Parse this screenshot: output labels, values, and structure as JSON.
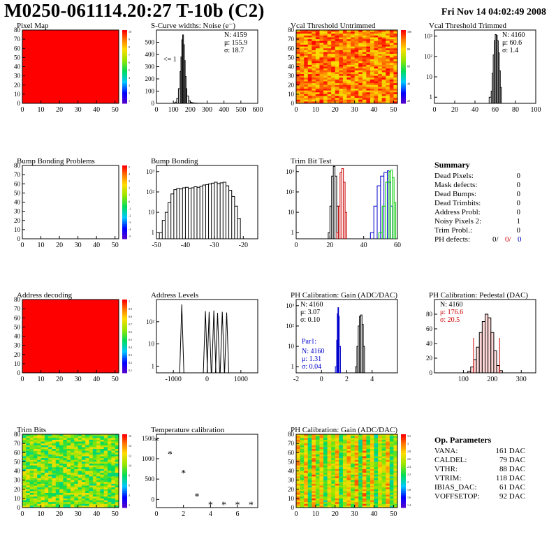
{
  "header": {
    "title": "M0250-061114.20:27 T-10b (C2)",
    "date": "Fri Nov 14 04:02:49 2008"
  },
  "summary": {
    "title": "Summary",
    "rows": [
      {
        "label": "Dead Pixels:",
        "value": "0"
      },
      {
        "label": "Mask defects:",
        "value": "0"
      },
      {
        "label": "Dead Bumps:",
        "value": "0"
      },
      {
        "label": "Dead Trimbits:",
        "value": "0"
      },
      {
        "label": "Address Probl:",
        "value": "0"
      },
      {
        "label": "Noisy Pixels 2:",
        "value": "1"
      },
      {
        "label": "Trim Probl.:",
        "value": "0"
      }
    ],
    "ph_label": "PH defects:",
    "ph_values": [
      "0/",
      "0/",
      "0"
    ],
    "ph_colors": [
      "#000000",
      "#cc0000",
      "#0000cc"
    ]
  },
  "op_params": {
    "title": "Op. Parameters",
    "rows": [
      {
        "label": "VANA:",
        "value": "161 DAC"
      },
      {
        "label": "CALDEL:",
        "value": "79 DAC"
      },
      {
        "label": "VTHR:",
        "value": "88 DAC"
      },
      {
        "label": "VTRIM:",
        "value": "118 DAC"
      },
      {
        "label": "IBIAS_DAC:",
        "value": "61 DAC"
      },
      {
        "label": "VOFFSETOP:",
        "value": "92 DAC"
      }
    ]
  },
  "chart_data": [
    {
      "id": "pixel-map",
      "type": "heatmap",
      "title": "Pixel Map",
      "xlim": [
        0,
        52
      ],
      "ylim": [
        0,
        80
      ],
      "xticks": [
        0,
        10,
        20,
        30,
        40,
        50
      ],
      "yticks": [
        0,
        10,
        20,
        30,
        40,
        50,
        60,
        70,
        80
      ],
      "palette_ticks": [
        "10",
        "9",
        "8",
        "7",
        "6",
        "5",
        "4",
        "3",
        "2",
        "1"
      ],
      "fill": "uniform-red"
    },
    {
      "id": "scurve-noise",
      "type": "line",
      "title": "S-Curve widths: Noise (e⁻)",
      "xlim": [
        0,
        600
      ],
      "ylim": [
        0,
        600
      ],
      "xticks": [
        0,
        100,
        200,
        300,
        400,
        500,
        600
      ],
      "yticks": [
        0,
        100,
        200,
        300,
        400,
        500
      ],
      "x": [
        80,
        100,
        110,
        120,
        130,
        140,
        145,
        150,
        155,
        160,
        165,
        170,
        175,
        180,
        190,
        200,
        210,
        220,
        240,
        260,
        280
      ],
      "y": [
        0,
        2,
        10,
        40,
        120,
        260,
        380,
        520,
        560,
        480,
        350,
        220,
        120,
        60,
        20,
        8,
        4,
        2,
        1,
        1,
        0
      ],
      "stats": [
        "N: 4159",
        "μ: 155.9",
        "σ: 18.7"
      ],
      "annotation": "<= 1"
    },
    {
      "id": "vcal-untrimmed",
      "type": "heatmap",
      "title": "Vcal Threshold Untrimmed",
      "xlim": [
        0,
        52
      ],
      "ylim": [
        0,
        80
      ],
      "xticks": [
        0,
        10,
        20,
        30,
        40,
        50
      ],
      "yticks": [
        0,
        10,
        20,
        30,
        40,
        50,
        60,
        70,
        80
      ],
      "palette_ticks": [
        "100",
        "80",
        "60",
        "40",
        "20"
      ],
      "fill": "noisy-orange"
    },
    {
      "id": "vcal-trimmed",
      "type": "line",
      "title": "Vcal Threshold Trimmed",
      "log_y": true,
      "xlim": [
        0,
        100
      ],
      "ylim": [
        0.5,
        2000
      ],
      "xticks": [
        0,
        20,
        40,
        60,
        80,
        100
      ],
      "yticks": [
        "1",
        "10",
        "10²",
        "10³"
      ],
      "x": [
        54,
        56,
        57,
        58,
        59,
        60,
        61,
        62,
        63,
        64,
        65,
        66
      ],
      "y": [
        1,
        2,
        15,
        120,
        600,
        1200,
        1100,
        600,
        150,
        20,
        3,
        1
      ],
      "stats": [
        "N: 4160",
        "μ: 60.6",
        "σ: 1.4"
      ]
    },
    {
      "id": "bump-problems",
      "type": "heatmap",
      "title": "Bump Bonding Problems",
      "xlim": [
        0,
        52
      ],
      "ylim": [
        0,
        80
      ],
      "xticks": [
        0,
        10,
        20,
        30,
        40,
        50
      ],
      "yticks": [
        0,
        10,
        20,
        30,
        40,
        50,
        60,
        70,
        80
      ],
      "palette_ticks": [
        "5",
        "4",
        "3",
        "2",
        "1",
        "0",
        "-1",
        "-2",
        "-3",
        "-4",
        "-5"
      ],
      "fill": "empty"
    },
    {
      "id": "bump-bonding",
      "type": "line",
      "title": "Bump Bonding",
      "log_y": true,
      "xlim": [
        -50,
        -15
      ],
      "ylim": [
        0.5,
        2000
      ],
      "xticks": [
        -50,
        -40,
        -30,
        -20
      ],
      "yticks": [
        "1",
        "10",
        "10²",
        "10³"
      ],
      "x": [
        -49,
        -48,
        -47,
        -46,
        -45,
        -44,
        -43,
        -42,
        -41,
        -40,
        -39,
        -38,
        -37,
        -36,
        -35,
        -34,
        -33,
        -32,
        -31,
        -30,
        -29,
        -28,
        -27,
        -26,
        -25,
        -24,
        -23,
        -22,
        -21
      ],
      "y": [
        1,
        4,
        10,
        30,
        80,
        130,
        150,
        140,
        160,
        170,
        150,
        160,
        180,
        170,
        190,
        220,
        230,
        250,
        270,
        300,
        260,
        280,
        300,
        200,
        120,
        60,
        20,
        5,
        1
      ]
    },
    {
      "id": "trim-bit-test",
      "type": "line",
      "title": "Trim Bit Test",
      "log_y": true,
      "xlim": [
        0,
        60
      ],
      "ylim": [
        0.5,
        2000
      ],
      "xticks": [
        0,
        20,
        40,
        60
      ],
      "yticks": [
        "1",
        "10",
        "10²",
        "10³"
      ],
      "series": [
        {
          "color": "#000000",
          "x": [
            19,
            20,
            21,
            22,
            23,
            24,
            25
          ],
          "y": [
            1,
            20,
            600,
            1800,
            600,
            20,
            1
          ]
        },
        {
          "color": "#cc0000",
          "x": [
            24,
            25,
            26,
            27,
            28,
            29,
            30
          ],
          "y": [
            1,
            20,
            900,
            1400,
            300,
            10,
            1
          ]
        },
        {
          "color": "#0000cc",
          "x": [
            44,
            46,
            48,
            50,
            52,
            54,
            55,
            56,
            57
          ],
          "y": [
            1,
            20,
            200,
            600,
            900,
            1100,
            300,
            20,
            1
          ]
        },
        {
          "color": "#00cc00",
          "x": [
            49,
            51,
            53,
            55,
            56,
            57,
            58,
            59
          ],
          "y": [
            1,
            20,
            300,
            1000,
            1200,
            500,
            30,
            1
          ]
        }
      ]
    },
    {
      "id": "address-decoding",
      "type": "heatmap",
      "title": "Address decoding",
      "xlim": [
        0,
        52
      ],
      "ylim": [
        0,
        80
      ],
      "xticks": [
        0,
        10,
        20,
        30,
        40,
        50
      ],
      "yticks": [
        0,
        10,
        20,
        30,
        40,
        50,
        60,
        70,
        80
      ],
      "palette_ticks": [
        "1",
        "0.9",
        "0.8",
        "0.7",
        "0.6",
        "0.5",
        "0.4",
        "0.3",
        "0.2",
        "0.1"
      ],
      "fill": "uniform-red"
    },
    {
      "id": "address-levels",
      "type": "line",
      "title": "Address Levels",
      "log_y": true,
      "xlim": [
        -1500,
        1500
      ],
      "ylim": [
        0.5,
        1000
      ],
      "xticks": [
        -1000,
        0,
        1000
      ],
      "yticks": [
        "1",
        "10",
        "10²"
      ],
      "peaks": [
        {
          "x": -750,
          "y": 600
        },
        {
          "x": -50,
          "y": 300
        },
        {
          "x": 60,
          "y": 280
        },
        {
          "x": 200,
          "y": 320
        },
        {
          "x": 310,
          "y": 250
        },
        {
          "x": 450,
          "y": 280
        },
        {
          "x": 580,
          "y": 260
        }
      ]
    },
    {
      "id": "ph-gain",
      "type": "line",
      "title": "PH Calibration: Gain (ADC/DAC)",
      "log_y": true,
      "xlim": [
        -2,
        6
      ],
      "ylim": [
        0.5,
        2000
      ],
      "xticks": [
        -2,
        0,
        2,
        4
      ],
      "yticks": [
        "1",
        "10",
        "10²",
        "10³"
      ],
      "series": [
        {
          "color": "#0000cc",
          "x": [
            1.1,
            1.2,
            1.25,
            1.3,
            1.35,
            1.4,
            1.5
          ],
          "y": [
            1,
            20,
            400,
            800,
            300,
            10,
            1
          ]
        },
        {
          "color": "#000000",
          "x": [
            2.7,
            2.8,
            2.9,
            3.0,
            3.1,
            3.2,
            3.3,
            3.4
          ],
          "y": [
            1,
            10,
            100,
            300,
            350,
            120,
            10,
            1
          ]
        }
      ],
      "stats": [
        "N: 4160",
        "μ: 3.07",
        "σ: 0.10"
      ],
      "stats2_title": "Par1:",
      "stats2": [
        "N: 4160",
        "μ: 1.31",
        "σ: 0.04"
      ]
    },
    {
      "id": "ph-pedestal",
      "type": "bar",
      "title": "PH Calibration: Pedestal (DAC)",
      "xlim": [
        0,
        350
      ],
      "ylim": [
        0,
        100
      ],
      "xticks": [
        100,
        200,
        300
      ],
      "yticks": [
        0,
        20,
        40,
        60,
        80
      ],
      "x": [
        120,
        130,
        140,
        150,
        160,
        170,
        180,
        190,
        200,
        210,
        220,
        230
      ],
      "y": [
        2,
        8,
        18,
        35,
        55,
        70,
        80,
        75,
        55,
        30,
        10,
        3
      ],
      "markers": [
        135,
        225
      ],
      "stats": [
        "N: 4160",
        "μ: 176.6",
        "σ: 20.5"
      ]
    },
    {
      "id": "trim-bits",
      "type": "heatmap",
      "title": "Trim Bits",
      "xlim": [
        0,
        52
      ],
      "ylim": [
        0,
        80
      ],
      "xticks": [
        0,
        10,
        20,
        30,
        40,
        50
      ],
      "yticks": [
        0,
        10,
        20,
        30,
        40,
        50,
        60,
        70,
        80
      ],
      "palette_ticks": [
        "16",
        "14",
        "12",
        "10",
        "8",
        "6",
        "4",
        "2"
      ],
      "fill": "noisy-green"
    },
    {
      "id": "temperature",
      "type": "scatter",
      "title": "Temperature calibration",
      "xlim": [
        0,
        7.5
      ],
      "ylim": [
        -200,
        1600
      ],
      "xticks": [
        0,
        2,
        4,
        6
      ],
      "yticks": [
        0,
        500,
        1000,
        1500
      ],
      "x": [
        0,
        1,
        2,
        3,
        4,
        5,
        6,
        7
      ],
      "y": [
        1450,
        1120,
        660,
        80,
        -120,
        -120,
        -120,
        -120
      ]
    },
    {
      "id": "ph-gain-map",
      "type": "heatmap",
      "title": "PH Calibration: Gain (ADC/DAC)",
      "xlim": [
        0,
        52
      ],
      "ylim": [
        0,
        80
      ],
      "xticks": [
        0,
        10,
        20,
        30,
        40,
        50
      ],
      "yticks": [
        0,
        10,
        20,
        30,
        40,
        50,
        60,
        70,
        80
      ],
      "palette_ticks": [
        "3.2",
        "3",
        "2.8",
        "2.6",
        "2.4",
        "2.2",
        "2",
        "1.8",
        "1.6",
        "1.4"
      ],
      "fill": "banded"
    }
  ]
}
